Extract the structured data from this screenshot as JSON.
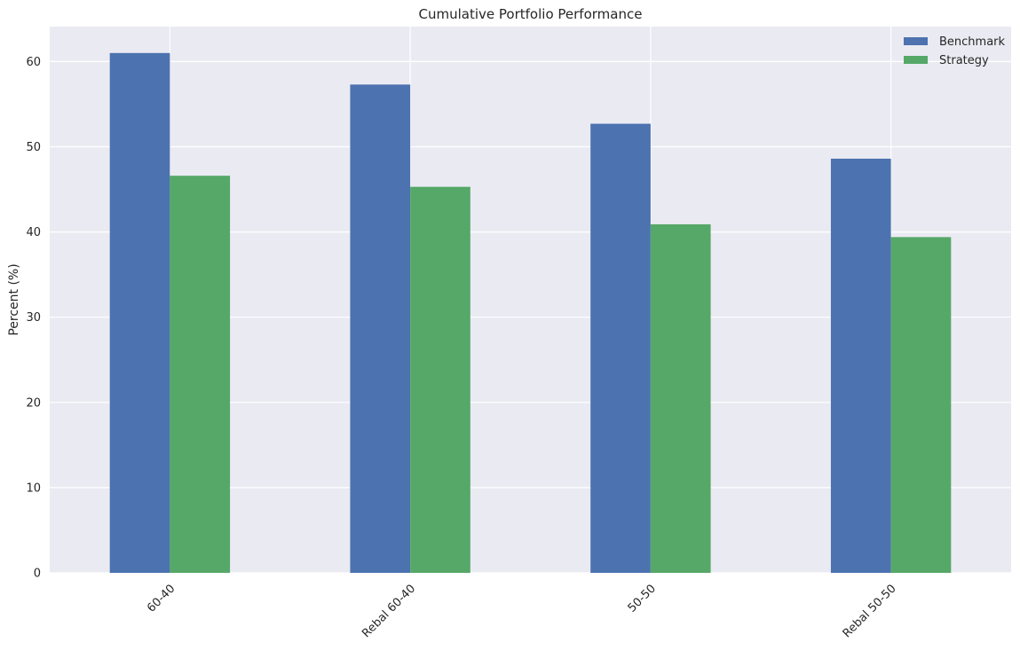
{
  "chart_data": {
    "type": "bar",
    "title": "Cumulative Portfolio Performance",
    "xlabel": "",
    "ylabel": "Percent (%)",
    "categories": [
      "60-40",
      "Rebal 60-40",
      "50-50",
      "Rebal 50-50"
    ],
    "series": [
      {
        "name": "Benchmark",
        "color": "#4c72b0",
        "values": [
          61.0,
          57.3,
          52.7,
          48.6
        ]
      },
      {
        "name": "Strategy",
        "color": "#55a868",
        "values": [
          46.6,
          45.3,
          40.9,
          39.4
        ]
      }
    ],
    "ylim": [
      0,
      64.1
    ],
    "yticks": [
      0,
      10,
      20,
      30,
      40,
      50,
      60
    ],
    "grid": true,
    "legend_position": "top-right",
    "background_color": "#eaeaf2",
    "grid_color": "#ffffff"
  }
}
